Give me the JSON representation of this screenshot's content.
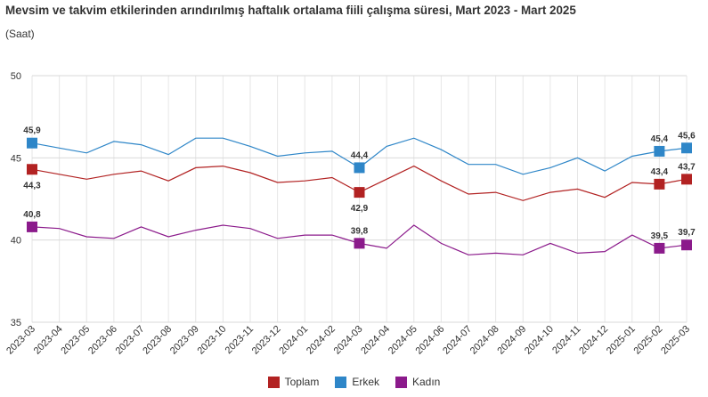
{
  "chart_data": {
    "type": "line",
    "title": "Mevsim ve takvim etkilerinden arındırılmış haftalık ortalama fiili çalışma süresi, Mart 2023 - Mart 2025",
    "subtitle": "(Saat)",
    "ylim": [
      35,
      50
    ],
    "yticks": [
      35,
      40,
      45,
      50
    ],
    "categories": [
      "2023-03",
      "2023-04",
      "2023-05",
      "2023-06",
      "2023-07",
      "2023-08",
      "2023-09",
      "2023-10",
      "2023-11",
      "2023-12",
      "2024-01",
      "2024-02",
      "2024-03",
      "2024-04",
      "2024-05",
      "2024-06",
      "2024-07",
      "2024-08",
      "2024-09",
      "2024-10",
      "2024-11",
      "2024-12",
      "2025-01",
      "2025-02",
      "2025-03"
    ],
    "series": [
      {
        "name": "Toplam",
        "color": "#b22222",
        "values": [
          44.3,
          44.0,
          43.7,
          44.0,
          44.2,
          43.6,
          44.4,
          44.5,
          44.1,
          43.5,
          43.6,
          43.8,
          42.9,
          43.7,
          44.5,
          43.6,
          42.8,
          42.9,
          42.4,
          42.9,
          43.1,
          42.6,
          43.5,
          43.4,
          43.7
        ],
        "markers": [
          0,
          12,
          23,
          24
        ]
      },
      {
        "name": "Erkek",
        "color": "#2e86c8",
        "values": [
          45.9,
          45.6,
          45.3,
          46.0,
          45.8,
          45.2,
          46.2,
          46.2,
          45.7,
          45.1,
          45.3,
          45.4,
          44.4,
          45.7,
          46.2,
          45.5,
          44.6,
          44.6,
          44.0,
          44.4,
          45.0,
          44.2,
          45.1,
          45.4,
          45.6
        ],
        "markers": [
          0,
          12,
          23,
          24
        ]
      },
      {
        "name": "Kadın",
        "color": "#8b1a8b",
        "values": [
          40.8,
          40.7,
          40.2,
          40.1,
          40.8,
          40.2,
          40.6,
          40.9,
          40.7,
          40.1,
          40.3,
          40.3,
          39.8,
          39.5,
          40.9,
          39.8,
          39.1,
          39.2,
          39.1,
          39.8,
          39.2,
          39.3,
          40.3,
          39.5,
          39.7
        ],
        "markers": [
          0,
          12,
          23,
          24
        ]
      }
    ],
    "data_labels": [
      {
        "series": 1,
        "index": 0,
        "text": "45,9",
        "pos": "above"
      },
      {
        "series": 0,
        "index": 0,
        "text": "44,3",
        "pos": "below"
      },
      {
        "series": 2,
        "index": 0,
        "text": "40,8",
        "pos": "above"
      },
      {
        "series": 1,
        "index": 12,
        "text": "44,4",
        "pos": "above"
      },
      {
        "series": 0,
        "index": 12,
        "text": "42,9",
        "pos": "below"
      },
      {
        "series": 2,
        "index": 12,
        "text": "39,8",
        "pos": "above"
      },
      {
        "series": 1,
        "index": 23,
        "text": "45,4",
        "pos": "above"
      },
      {
        "series": 0,
        "index": 23,
        "text": "43,4",
        "pos": "above"
      },
      {
        "series": 2,
        "index": 23,
        "text": "39,5",
        "pos": "above"
      },
      {
        "series": 1,
        "index": 24,
        "text": "45,6",
        "pos": "above"
      },
      {
        "series": 0,
        "index": 24,
        "text": "43,7",
        "pos": "above"
      },
      {
        "series": 2,
        "index": 24,
        "text": "39,7",
        "pos": "above"
      }
    ],
    "grid": true,
    "legend_position": "bottom-center"
  },
  "legend": [
    {
      "label": "Toplam",
      "color": "#b22222"
    },
    {
      "label": "Erkek",
      "color": "#2e86c8"
    },
    {
      "label": "Kadın",
      "color": "#8b1a8b"
    }
  ]
}
